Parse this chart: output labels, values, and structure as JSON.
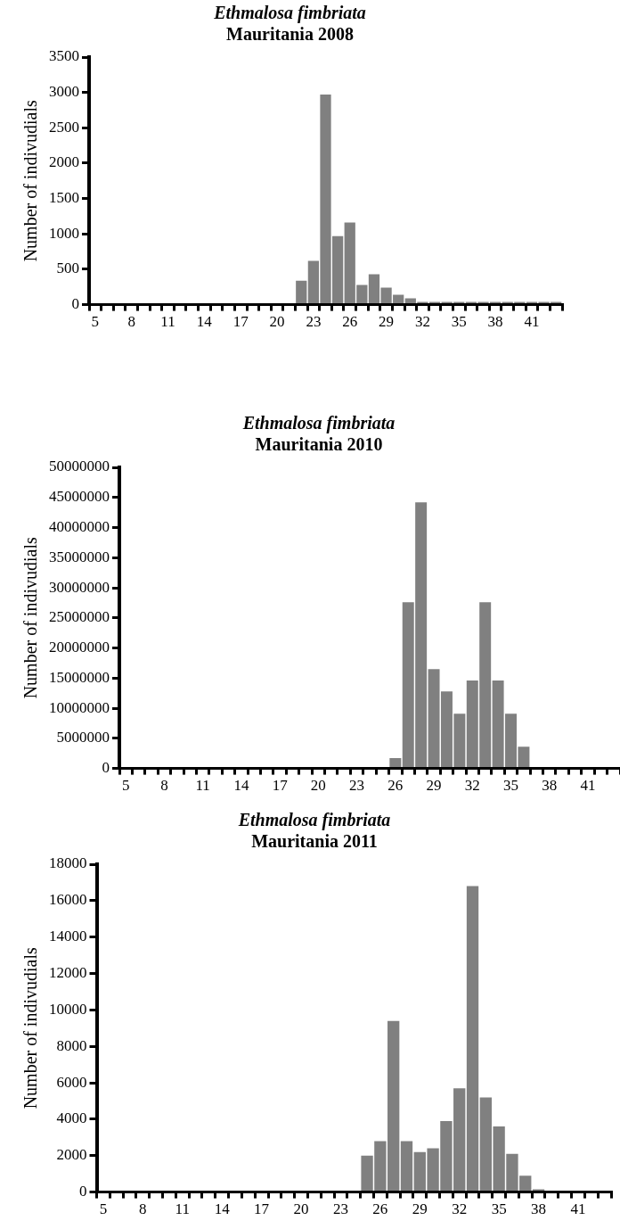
{
  "chart_data": [
    {
      "type": "bar",
      "title": "Ethmalosa fimbriata",
      "subtitle": "Mauritania 2008",
      "ylabel": "Number of indivudials",
      "color": "#808080",
      "categories": [
        "5",
        null,
        null,
        "8",
        null,
        null,
        "11",
        null,
        null,
        "14",
        null,
        null,
        "17",
        null,
        null,
        "20",
        null,
        null,
        "23",
        null,
        null,
        "26",
        null,
        null,
        "29",
        null,
        null,
        "32",
        null,
        null,
        "35",
        null,
        null,
        "38",
        null,
        null,
        "41",
        null,
        null
      ],
      "values": [
        0,
        0,
        0,
        0,
        0,
        0,
        0,
        0,
        0,
        0,
        0,
        0,
        0,
        0,
        0,
        0,
        0,
        340,
        620,
        2970,
        970,
        1160,
        280,
        430,
        240,
        140,
        90,
        40,
        40,
        40,
        40,
        40,
        40,
        40,
        40,
        40,
        40,
        40,
        40
      ],
      "ylim": [
        0,
        3500
      ],
      "yticks": [
        0,
        500,
        1000,
        1500,
        2000,
        2500,
        3000,
        3500
      ],
      "grid": false,
      "legend": false
    },
    {
      "type": "bar",
      "title": "Ethmalosa fimbriata",
      "subtitle": "Mauritania 2010",
      "ylabel": "Number of indivudials",
      "color": "#808080",
      "categories": [
        "5",
        null,
        null,
        "8",
        null,
        null,
        "11",
        null,
        null,
        "14",
        null,
        null,
        "17",
        null,
        null,
        "20",
        null,
        null,
        "23",
        null,
        null,
        "26",
        null,
        null,
        "29",
        null,
        null,
        "32",
        null,
        null,
        "35",
        null,
        null,
        "38",
        null,
        null,
        "41",
        null,
        null
      ],
      "values": [
        0,
        0,
        0,
        0,
        0,
        0,
        0,
        0,
        0,
        0,
        0,
        0,
        0,
        0,
        0,
        0,
        0,
        0,
        0,
        0,
        0,
        1700000,
        27600000,
        44200000,
        16500000,
        12800000,
        9100000,
        14600000,
        27600000,
        14600000,
        9100000,
        3600000,
        0,
        0,
        0,
        0,
        0,
        0,
        0
      ],
      "ylim": [
        0,
        50000000
      ],
      "yticks": [
        0,
        5000000,
        10000000,
        15000000,
        20000000,
        25000000,
        30000000,
        35000000,
        40000000,
        45000000,
        50000000
      ],
      "grid": false,
      "legend": false
    },
    {
      "type": "bar",
      "title": "Ethmalosa fimbriata",
      "subtitle": "Mauritania 2011",
      "ylabel": "Number of indivudials",
      "color": "#808080",
      "categories": [
        "5",
        null,
        null,
        "8",
        null,
        null,
        "11",
        null,
        null,
        "14",
        null,
        null,
        "17",
        null,
        null,
        "20",
        null,
        null,
        "23",
        null,
        null,
        "26",
        null,
        null,
        "29",
        null,
        null,
        "32",
        null,
        null,
        "35",
        null,
        null,
        "38",
        null,
        null,
        "41",
        null,
        null
      ],
      "values": [
        0,
        0,
        0,
        0,
        0,
        0,
        0,
        0,
        0,
        0,
        0,
        0,
        0,
        0,
        0,
        0,
        0,
        0,
        0,
        0,
        2000,
        2800,
        9400,
        2800,
        2200,
        2400,
        3900,
        5700,
        16800,
        5200,
        3600,
        2100,
        900,
        150,
        0,
        0,
        0,
        0,
        0
      ],
      "ylim": [
        0,
        18000
      ],
      "yticks": [
        0,
        2000,
        4000,
        6000,
        8000,
        10000,
        12000,
        14000,
        16000,
        18000
      ],
      "grid": false,
      "legend": false
    }
  ]
}
